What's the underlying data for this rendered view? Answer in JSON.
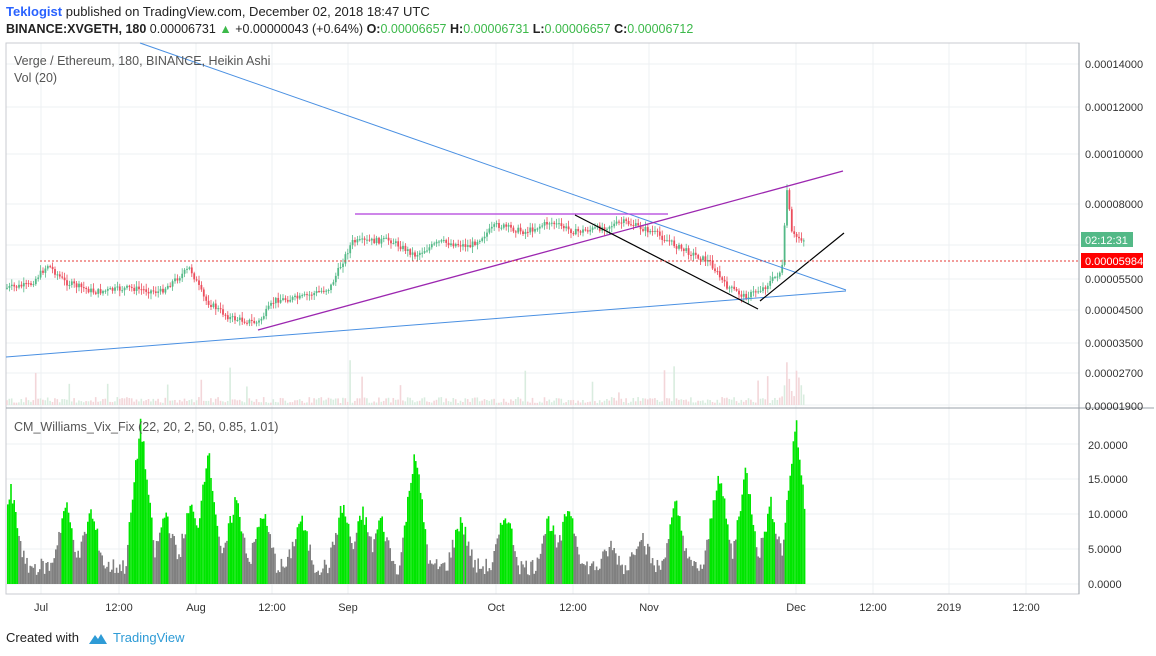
{
  "header": {
    "author": "Teklogist",
    "published_text": "published on TradingView.com, December 02, 2018 18:47 UTC",
    "symbol": "BINANCE:XVGETH, 180",
    "last": "0.00006731",
    "change_arrow": "▲",
    "change": "+0.00000043 (+0.64%)",
    "o_label": "O:",
    "o_value": "0.00006657",
    "h_label": "H:",
    "h_value": "0.00006731",
    "l_label": "L:",
    "l_value": "0.00006657",
    "c_label": "C:",
    "c_value": "0.00006712"
  },
  "legend": {
    "main_title": "Verge / Ethereum, 180, BINANCE, Heikin Ashi",
    "volume": "Vol (20)",
    "indicator": "CM_Williams_Vix_Fix (22, 20, 2, 50, 0.85, 1.01)"
  },
  "price_axis": [
    "0.00014000",
    "0.00012000",
    "0.00010000",
    "0.00008000",
    "0.00005500",
    "0.00004500",
    "0.00003500",
    "0.00002700",
    "0.00001900"
  ],
  "price_badges": {
    "countdown": "02:12:31",
    "level": "0.00005984"
  },
  "indicator_axis": [
    "20.0000",
    "15.0000",
    "10.0000",
    "5.0000",
    "0.0000"
  ],
  "time_axis": [
    "Jul",
    "12:00",
    "Aug",
    "12:00",
    "Sep",
    "Oct",
    "12:00",
    "Nov",
    "Dec",
    "12:00",
    "2019",
    "12:00"
  ],
  "colors": {
    "up": "#53b987",
    "down": "#eb4d5c",
    "trendline_blue": "#4a90e2",
    "trendline_purple": "#9c27b0",
    "trendline_black": "#000000",
    "level_line": "#e53935",
    "vix_normal": "#808080",
    "vix_signal": "#00e600",
    "countdown_bg": "#53b987",
    "level_bg": "#ff0000"
  },
  "footer": {
    "created_with": "Created with",
    "brand": "TradingView",
    "logo_icon": "tradingview-cloud-icon"
  }
}
